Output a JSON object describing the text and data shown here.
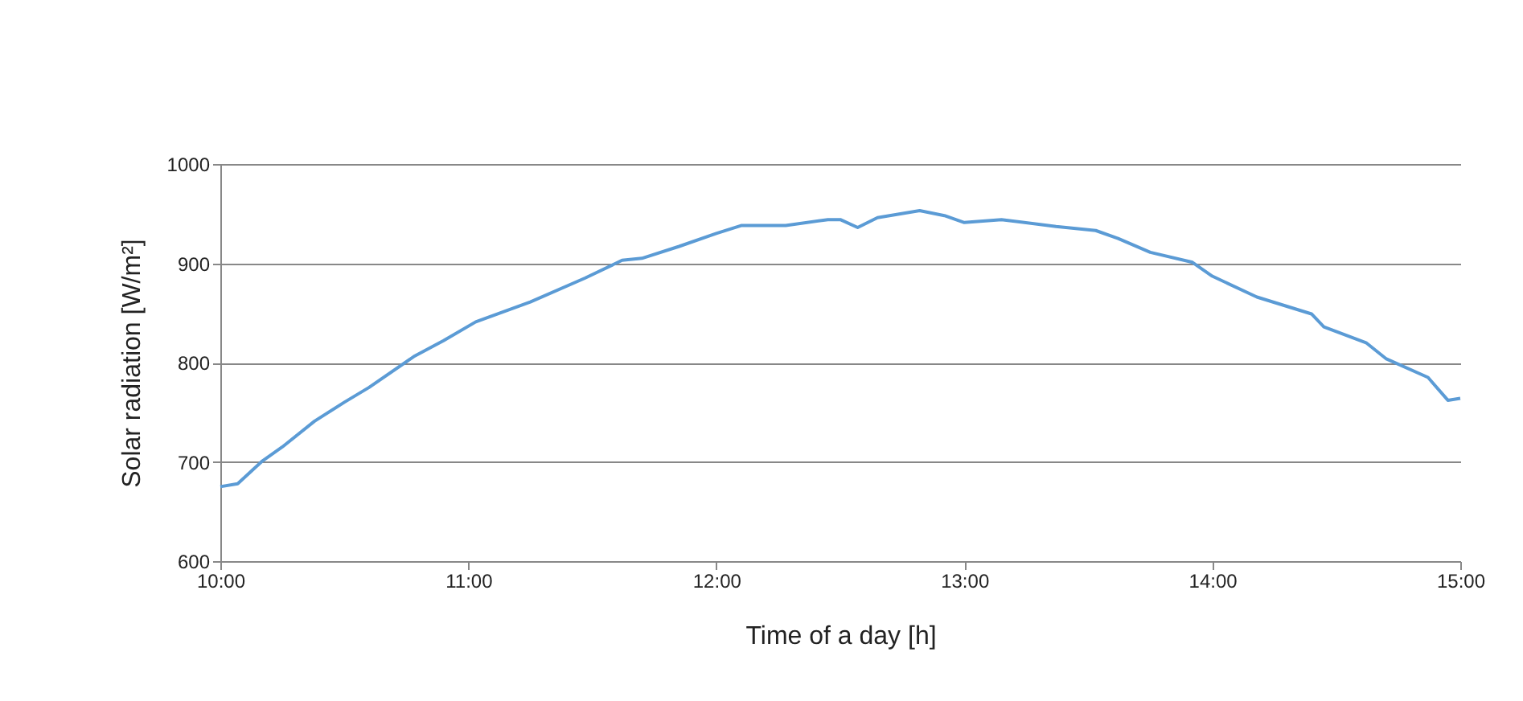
{
  "chart_data": {
    "type": "line",
    "xlabel": "Time of a day [h]",
    "ylabel": "Solar radiation [W/m²]",
    "x": [
      10.0,
      10.07,
      10.17,
      10.25,
      10.38,
      10.5,
      10.6,
      10.78,
      10.9,
      11.03,
      11.25,
      11.47,
      11.62,
      11.7,
      11.85,
      12.0,
      12.1,
      12.28,
      12.45,
      12.5,
      12.57,
      12.65,
      12.82,
      12.92,
      13.0,
      13.15,
      13.37,
      13.53,
      13.62,
      13.75,
      13.92,
      14.0,
      14.18,
      14.4,
      14.45,
      14.62,
      14.7,
      14.87,
      14.95,
      15.0
    ],
    "series": [
      {
        "color": "#5b9bd5",
        "values": [
          675,
          678,
          701,
          715,
          741,
          760,
          775,
          806,
          822,
          841,
          861,
          885,
          903,
          905,
          917,
          930,
          938,
          938,
          944,
          944,
          936,
          946,
          953,
          948,
          941,
          944,
          937,
          933,
          925,
          911,
          901,
          887,
          866,
          849,
          836,
          820,
          804,
          785,
          762,
          764
        ]
      }
    ],
    "xlim": [
      10,
      15
    ],
    "xticks": [
      {
        "value": 10,
        "label": "10:00"
      },
      {
        "value": 11,
        "label": "11:00"
      },
      {
        "value": 12,
        "label": "12:00"
      },
      {
        "value": 13,
        "label": "13:00"
      },
      {
        "value": 14,
        "label": "14:00"
      },
      {
        "value": 15,
        "label": "15:00"
      }
    ],
    "ylim": [
      600,
      1000
    ],
    "yticks": [
      600,
      700,
      800,
      900,
      1000
    ],
    "grid": "y"
  }
}
